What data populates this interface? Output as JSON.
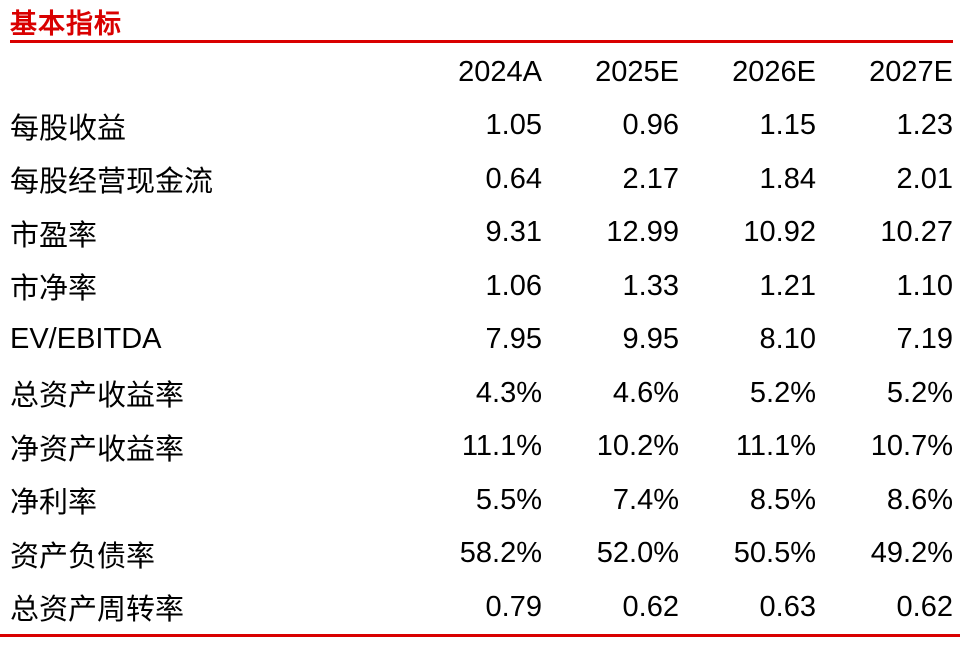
{
  "title": "基本指标",
  "accent_color": "#d90000",
  "text_color": "#000000",
  "table": {
    "columns": [
      "2024A",
      "2025E",
      "2026E",
      "2027E"
    ],
    "rows": [
      {
        "label": "每股收益",
        "values": [
          "1.05",
          "0.96",
          "1.15",
          "1.23"
        ]
      },
      {
        "label": "每股经营现金流",
        "values": [
          "0.64",
          "2.17",
          "1.84",
          "2.01"
        ]
      },
      {
        "label": "市盈率",
        "values": [
          "9.31",
          "12.99",
          "10.92",
          "10.27"
        ]
      },
      {
        "label": "市净率",
        "values": [
          "1.06",
          "1.33",
          "1.21",
          "1.10"
        ]
      },
      {
        "label": "EV/EBITDA",
        "values": [
          "7.95",
          "9.95",
          "8.10",
          "7.19"
        ]
      },
      {
        "label": "总资产收益率",
        "values": [
          "4.3%",
          "4.6%",
          "5.2%",
          "5.2%"
        ]
      },
      {
        "label": "净资产收益率",
        "values": [
          "11.1%",
          "10.2%",
          "11.1%",
          "10.7%"
        ]
      },
      {
        "label": "净利率",
        "values": [
          "5.5%",
          "7.4%",
          "8.5%",
          "8.6%"
        ]
      },
      {
        "label": "资产负债率",
        "values": [
          "58.2%",
          "52.0%",
          "50.5%",
          "49.2%"
        ]
      },
      {
        "label": "总资产周转率",
        "values": [
          "0.79",
          "0.62",
          "0.63",
          "0.62"
        ]
      }
    ]
  }
}
